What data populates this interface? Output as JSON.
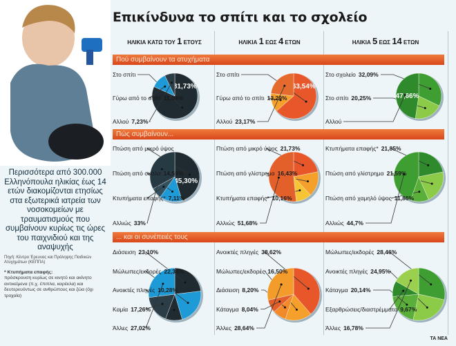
{
  "title": "Επικίνδυνα το σπίτι και το σχολείο",
  "columns": [
    {
      "pre": "ΗΛΙΚΙΑ ΚΑΤΩ ΤΟΥ",
      "num": "1",
      "post": "ΕΤΟΥΣ"
    },
    {
      "pre": "ΗΛΙΚΙΑ",
      "num": "1",
      "mid": "ΕΩΣ",
      "num2": "4",
      "post": "ΕΤΩΝ"
    },
    {
      "pre": "ΗΛΙΚΙΑ",
      "num": "5",
      "mid": "ΕΩΣ",
      "num2": "14",
      "post": "ΕΤΩΝ"
    }
  ],
  "sections": [
    "Πού συμβαίνουν τα ατυχήματα",
    "Πώς συμβαίνουν...",
    "... και οι συνέπειές τους"
  ],
  "lead": "Περισσότερα από 300.000 Ελληνόπουλα ηλικίας έως 14 ετών διακομίζονται ετησίως στα εξωτερικά ιατρεία των νοσοκομείων με τραυματισμούς που συμβαίνουν κυρίως τις ώρες του παιχνιδιού και της αναψυχής",
  "source": "Πηγή: Κέντρο Έρευνας και Πρόληψης Παιδικών Ατυχημάτων (ΚΕΠΠΑ)",
  "note": {
    "term": "* Κτυπήματα επαφής:",
    "text": "πρόσκρουση κυρίως σε κινητό και ακίνητο αντικείμενα (π.χ. έπιπλα, καρέκλα) και δευτερευόντως σε ανθρώπους και ζώα (όχι τροχαία)"
  },
  "credit": "ΤΑ ΝΕΑ",
  "chart_data": [
    {
      "type": "pie",
      "colors": [
        "#1f2b30",
        "#1e9ad6",
        "#2b3e47"
      ],
      "slices": [
        {
          "name": "Στο σπίτι",
          "value": 81.73,
          "label": "81,73%",
          "inside": true
        },
        {
          "name": "Γύρω από το σπίτι",
          "value": 11.04,
          "label": "11,04%"
        },
        {
          "name": "Αλλού",
          "value": 7.23,
          "label": "7,23%"
        }
      ]
    },
    {
      "type": "pie",
      "colors": [
        "#e8572a",
        "#f5a02a",
        "#e56a2e"
      ],
      "slices": [
        {
          "name": "Στο σπίτι",
          "value": 63.54,
          "label": "63,54%",
          "inside": true
        },
        {
          "name": "Γύρω από το σπίτι",
          "value": 13.29,
          "label": "13,29%"
        },
        {
          "name": "Αλλού",
          "value": 23.17,
          "label": "23,17%"
        }
      ]
    },
    {
      "type": "pie",
      "colors": [
        "#3f9e32",
        "#8ccb48",
        "#2f8a2c"
      ],
      "slices": [
        {
          "name": "Στο σχολείο",
          "value": 32.09,
          "label": "32,09%"
        },
        {
          "name": "Στο σπίτι",
          "value": 20.25,
          "label": "20,25%"
        },
        {
          "name": "Αλλού",
          "value": 47.66,
          "label": "47,66%",
          "inside": true
        }
      ]
    },
    {
      "type": "pie",
      "colors": [
        "#1f2b30",
        "#1e9ad6",
        "#33505e",
        "#263a44"
      ],
      "slices": [
        {
          "name": "Πτώση από μικρό ύψος",
          "value": 45.3,
          "label": "45,30%",
          "inside": true
        },
        {
          "name": "Πτώση από σκάλα",
          "value": 14.59,
          "label": "14,59%"
        },
        {
          "name": "Κτυπήματα επαφής*",
          "value": 7.11,
          "label": "7,11%"
        },
        {
          "name": "Αλλιώς",
          "value": 33,
          "label": "33%"
        }
      ]
    },
    {
      "type": "pie",
      "colors": [
        "#e8572a",
        "#f5a02a",
        "#f7c534",
        "#e4602a"
      ],
      "slices": [
        {
          "name": "Πτώση από μικρό ύψος",
          "value": 21.73,
          "label": "21,73%"
        },
        {
          "name": "Πτώση από γλίστρημα",
          "value": 16.43,
          "label": "16,43%"
        },
        {
          "name": "Κτυπήματα επαφής*",
          "value": 10.16,
          "label": "10,16%"
        },
        {
          "name": "Αλλιώς",
          "value": 51.68,
          "label": "51,68%"
        }
      ]
    },
    {
      "type": "pie",
      "colors": [
        "#2f8a2c",
        "#8ccb48",
        "#5aae3a",
        "#3f9e32"
      ],
      "slices": [
        {
          "name": "Κτυπήματα επαφής*",
          "value": 21.85,
          "label": "21,85%"
        },
        {
          "name": "Πτώση από γλίστρημα",
          "value": 21.59,
          "label": "21,59%"
        },
        {
          "name": "Πτώση από χαμηλό ύψος",
          "value": 11.86,
          "label": "11,86%"
        },
        {
          "name": "Αλλιώς",
          "value": 44.7,
          "label": "44,7%"
        }
      ]
    },
    {
      "type": "pie",
      "colors": [
        "#1f2b30",
        "#1e9ad6",
        "#1f2b30",
        "#2b3e47",
        "#1e9ad6"
      ],
      "slices": [
        {
          "name": "Διάσειση",
          "value": 23.1,
          "label": "23,10%"
        },
        {
          "name": "Μώλωπες/εκδορές",
          "value": 22.34,
          "label": "22,34%"
        },
        {
          "name": "Ανοικτές πληγές",
          "value": 10.28,
          "label": "10,28%"
        },
        {
          "name": "Καμία",
          "value": 17.26,
          "label": "17,26%"
        },
        {
          "name": "Άλλες",
          "value": 27.02,
          "label": "27,02%"
        }
      ]
    },
    {
      "type": "pie",
      "colors": [
        "#e8572a",
        "#f5a02a",
        "#f28a2a",
        "#e4602a",
        "#f39c2c"
      ],
      "slices": [
        {
          "name": "Ανοικτές πληγές",
          "value": 38.62,
          "label": "38,62%"
        },
        {
          "name": "Μώλωπες/εκδορές",
          "value": 16.5,
          "label": "16,50%"
        },
        {
          "name": "Διάσειση",
          "value": 8.2,
          "label": "8,20%"
        },
        {
          "name": "Κάταγμα",
          "value": 8.04,
          "label": "8,04%"
        },
        {
          "name": "Άλλες",
          "value": 28.64,
          "label": "28,64%"
        }
      ]
    },
    {
      "type": "pie",
      "colors": [
        "#3f9e32",
        "#8ccb48",
        "#5aae3a",
        "#2f8a2c",
        "#9bd04e"
      ],
      "slices": [
        {
          "name": "Μώλωπες/εκδορές",
          "value": 28.46,
          "label": "28,46%"
        },
        {
          "name": "Ανοικτές πληγές",
          "value": 24.95,
          "label": "24,95%"
        },
        {
          "name": "Κάταγμα",
          "value": 20.14,
          "label": "20,14%"
        },
        {
          "name": "Εξαρθρώσεις/διαστρέμματα",
          "value": 9.67,
          "label": "9,67%"
        },
        {
          "name": "Άλλες",
          "value": 16.78,
          "label": "16,78%"
        }
      ]
    }
  ]
}
